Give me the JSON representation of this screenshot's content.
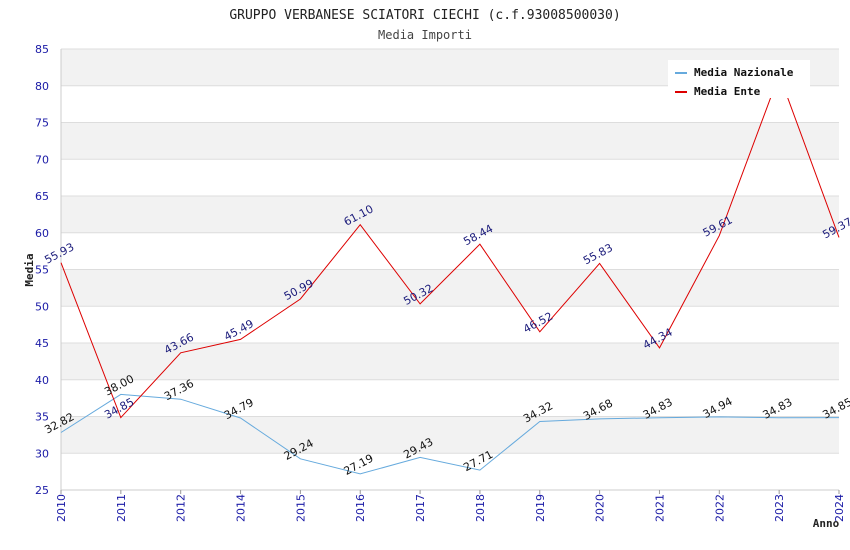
{
  "chart_data": {
    "type": "line",
    "title": "GRUPPO VERBANESE SCIATORI CIECHI (c.f.93008500030)",
    "subtitle": "Media Importi",
    "xlabel": "Anno",
    "ylabel": "Media",
    "ylim": [
      25,
      85
    ],
    "yticks": [
      25,
      30,
      35,
      40,
      45,
      50,
      55,
      60,
      65,
      70,
      75,
      80,
      85
    ],
    "categories": [
      "2010",
      "2011",
      "2012",
      "2014",
      "2015",
      "2016",
      "2017",
      "2018",
      "2019",
      "2020",
      "2021",
      "2022",
      "2023",
      "2024"
    ],
    "series": [
      {
        "name": "Media Nazionale",
        "color": "#66aadd",
        "values": [
          32.82,
          38.0,
          37.36,
          34.79,
          29.24,
          27.19,
          29.43,
          27.71,
          34.32,
          34.68,
          34.83,
          34.94,
          34.83,
          34.85
        ],
        "labels": [
          "32.82",
          "38.00",
          "37.36",
          "34.79",
          "29.24",
          "27.19",
          "29.43",
          "27.71",
          "34.32",
          "34.68",
          "34.83",
          "34.94",
          "34.83",
          "34.85"
        ]
      },
      {
        "name": "Media Ente",
        "color": "#dd0000",
        "values": [
          55.93,
          34.85,
          43.66,
          45.49,
          50.99,
          61.1,
          50.32,
          58.44,
          46.52,
          55.83,
          44.34,
          59.61,
          81.5,
          59.37
        ],
        "labels": [
          "55.93",
          "34.85",
          "43.66",
          "45.49",
          "50.99",
          "61.10",
          "50.32",
          "58.44",
          "46.52",
          "55.83",
          "44.34",
          "59.61",
          "",
          "59.37"
        ]
      }
    ],
    "grid": true,
    "legend_position": "top-right"
  }
}
